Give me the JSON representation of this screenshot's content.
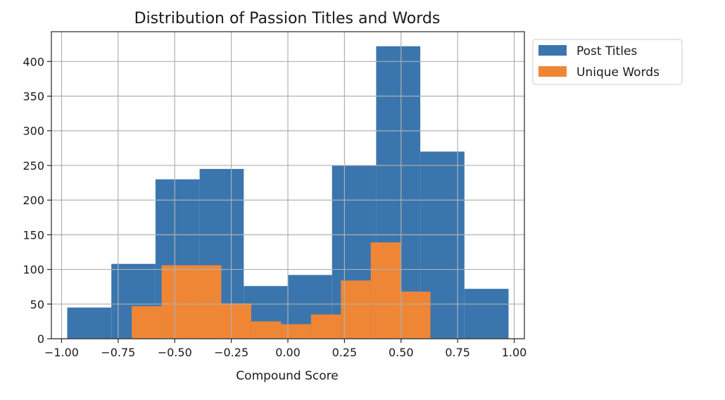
{
  "chart_data": {
    "type": "histogram",
    "title": "Distribution of Passion Titles and Words",
    "xlabel": "Compound Score",
    "ylabel": "",
    "xlim": [
      -1.045,
      1.045
    ],
    "ylim": [
      0,
      443
    ],
    "grid": true,
    "legend_position": "outside-top-right",
    "x_ticks": [
      -1.0,
      -0.75,
      -0.5,
      -0.25,
      0.0,
      0.25,
      0.5,
      0.75,
      1.0
    ],
    "x_tick_labels": [
      "−1.00",
      "−0.75",
      "−0.50",
      "−0.25",
      "0.00",
      "0.25",
      "0.50",
      "0.75",
      "1.00"
    ],
    "y_ticks": [
      0,
      50,
      100,
      150,
      200,
      250,
      300,
      350,
      400
    ],
    "y_tick_labels": [
      "0",
      "50",
      "100",
      "150",
      "200",
      "250",
      "300",
      "350",
      "400"
    ],
    "series": [
      {
        "name": "Post Titles",
        "color": "#3a75ae",
        "bin_edges": [
          -0.975,
          -0.78,
          -0.585,
          -0.39,
          -0.195,
          0.0,
          0.195,
          0.39,
          0.585,
          0.78,
          0.975
        ],
        "counts": [
          45,
          108,
          230,
          245,
          76,
          92,
          250,
          422,
          270,
          72
        ]
      },
      {
        "name": "Unique Words",
        "color": "#ef8636",
        "bin_edges": [
          -0.69,
          -0.558,
          -0.426,
          -0.294,
          -0.162,
          -0.03,
          0.102,
          0.234,
          0.366,
          0.498,
          0.63
        ],
        "counts": [
          47,
          106,
          106,
          51,
          25,
          21,
          35,
          84,
          139,
          68
        ]
      }
    ]
  }
}
